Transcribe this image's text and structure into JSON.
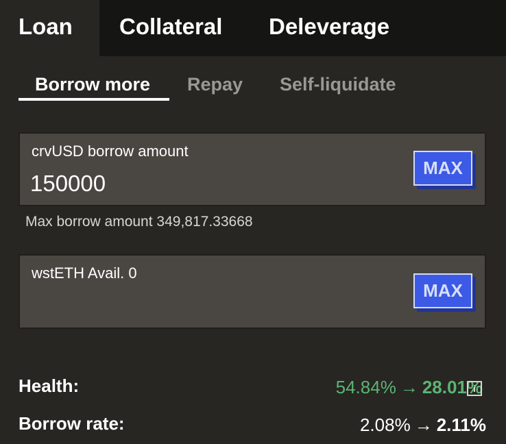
{
  "tabs": [
    {
      "label": "Loan",
      "active": true
    },
    {
      "label": "Collateral",
      "active": false
    },
    {
      "label": "Deleverage",
      "active": false
    }
  ],
  "subtabs": [
    {
      "label": "Borrow more",
      "active": true
    },
    {
      "label": "Repay",
      "active": false
    },
    {
      "label": "Self-liquidate",
      "active": false
    }
  ],
  "borrow_field": {
    "label": "crvUSD borrow amount",
    "value": "150000",
    "max_label": "MAX"
  },
  "max_borrow_hint": "Max borrow amount 349,817.33668",
  "collateral_field": {
    "label": "wstETH Avail. 0",
    "value": "",
    "max_label": "MAX"
  },
  "stats": {
    "health": {
      "label": "Health:",
      "old": "54.84%",
      "new": "28.01%",
      "icon": "info-icon"
    },
    "borrow_rate": {
      "label": "Borrow rate:",
      "old": "2.08%",
      "new": "2.11%"
    }
  },
  "colors": {
    "background": "#272623",
    "topbar": "#151513",
    "accent_button": "#3c5ae6",
    "health_green": "#5cb472"
  }
}
